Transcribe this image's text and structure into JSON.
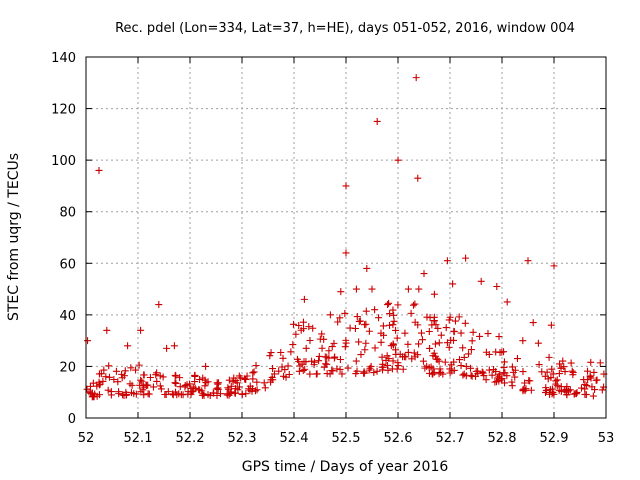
{
  "chart_data": {
    "type": "scatter",
    "title": "Rec. pdel (Lon=334, Lat=37, h=HE), days 051-052, 2016, window 004",
    "xlabel": "GPS time / Days of year 2016",
    "ylabel": "STEC from uqrg / TECUs",
    "xlim": [
      52,
      53
    ],
    "ylim": [
      0,
      140
    ],
    "xticks": [
      52,
      52.1,
      52.2,
      52.3,
      52.4,
      52.5,
      52.6,
      52.7,
      52.8,
      52.9,
      53
    ],
    "xtick_labels": [
      "52",
      "52.1",
      "52.2",
      "52.3",
      "52.4",
      "52.5",
      "52.6",
      "52.7",
      "52.8",
      "52.9",
      "53"
    ],
    "yticks": [
      0,
      20,
      40,
      60,
      80,
      100,
      120,
      140
    ],
    "ytick_labels": [
      "0",
      "20",
      "40",
      "60",
      "80",
      "100",
      "120",
      "140"
    ],
    "grid": true,
    "marker": "+",
    "color": "#cc0000",
    "outliers": [
      [
        52.003,
        30
      ],
      [
        52.025,
        96
      ],
      [
        52.04,
        34
      ],
      [
        52.08,
        28
      ],
      [
        52.105,
        34
      ],
      [
        52.14,
        44
      ],
      [
        52.155,
        27
      ],
      [
        52.17,
        28
      ],
      [
        52.23,
        20
      ],
      [
        52.42,
        46
      ],
      [
        52.47,
        40
      ],
      [
        52.49,
        49
      ],
      [
        52.5,
        90
      ],
      [
        52.5,
        64
      ],
      [
        52.52,
        50
      ],
      [
        52.54,
        58
      ],
      [
        52.55,
        50
      ],
      [
        52.56,
        115
      ],
      [
        52.6,
        100
      ],
      [
        52.62,
        50
      ],
      [
        52.635,
        132
      ],
      [
        52.638,
        93
      ],
      [
        52.64,
        50
      ],
      [
        52.65,
        56
      ],
      [
        52.67,
        48
      ],
      [
        52.695,
        61
      ],
      [
        52.705,
        52
      ],
      [
        52.73,
        62
      ],
      [
        52.76,
        53
      ],
      [
        52.79,
        51
      ],
      [
        52.81,
        45
      ],
      [
        52.85,
        61
      ],
      [
        52.9,
        59
      ],
      [
        52.895,
        36
      ],
      [
        52.86,
        37
      ],
      [
        52.87,
        29
      ],
      [
        52.84,
        30
      ],
      [
        52.555,
        42
      ],
      [
        52.58,
        44
      ]
    ],
    "base_curve": [
      [
        52.0,
        8
      ],
      [
        52.05,
        8.5
      ],
      [
        52.1,
        9
      ],
      [
        52.15,
        9
      ],
      [
        52.2,
        9
      ],
      [
        52.25,
        8.5
      ],
      [
        52.3,
        9
      ],
      [
        52.35,
        12
      ],
      [
        52.4,
        17
      ],
      [
        52.45,
        17
      ],
      [
        52.5,
        17
      ],
      [
        52.55,
        17.5
      ],
      [
        52.6,
        19
      ],
      [
        52.65,
        17
      ],
      [
        52.7,
        17
      ],
      [
        52.75,
        16
      ],
      [
        52.8,
        13
      ],
      [
        52.85,
        10
      ],
      [
        52.9,
        9
      ],
      [
        52.95,
        9
      ],
      [
        53.0,
        8
      ]
    ],
    "spread_curve": [
      [
        52.0,
        12
      ],
      [
        52.1,
        12
      ],
      [
        52.2,
        8
      ],
      [
        52.3,
        8
      ],
      [
        52.35,
        12
      ],
      [
        52.4,
        22
      ],
      [
        52.5,
        24
      ],
      [
        52.6,
        28
      ],
      [
        52.7,
        24
      ],
      [
        52.8,
        18
      ],
      [
        52.9,
        14
      ],
      [
        53.0,
        14
      ]
    ],
    "dense_count": 520
  }
}
